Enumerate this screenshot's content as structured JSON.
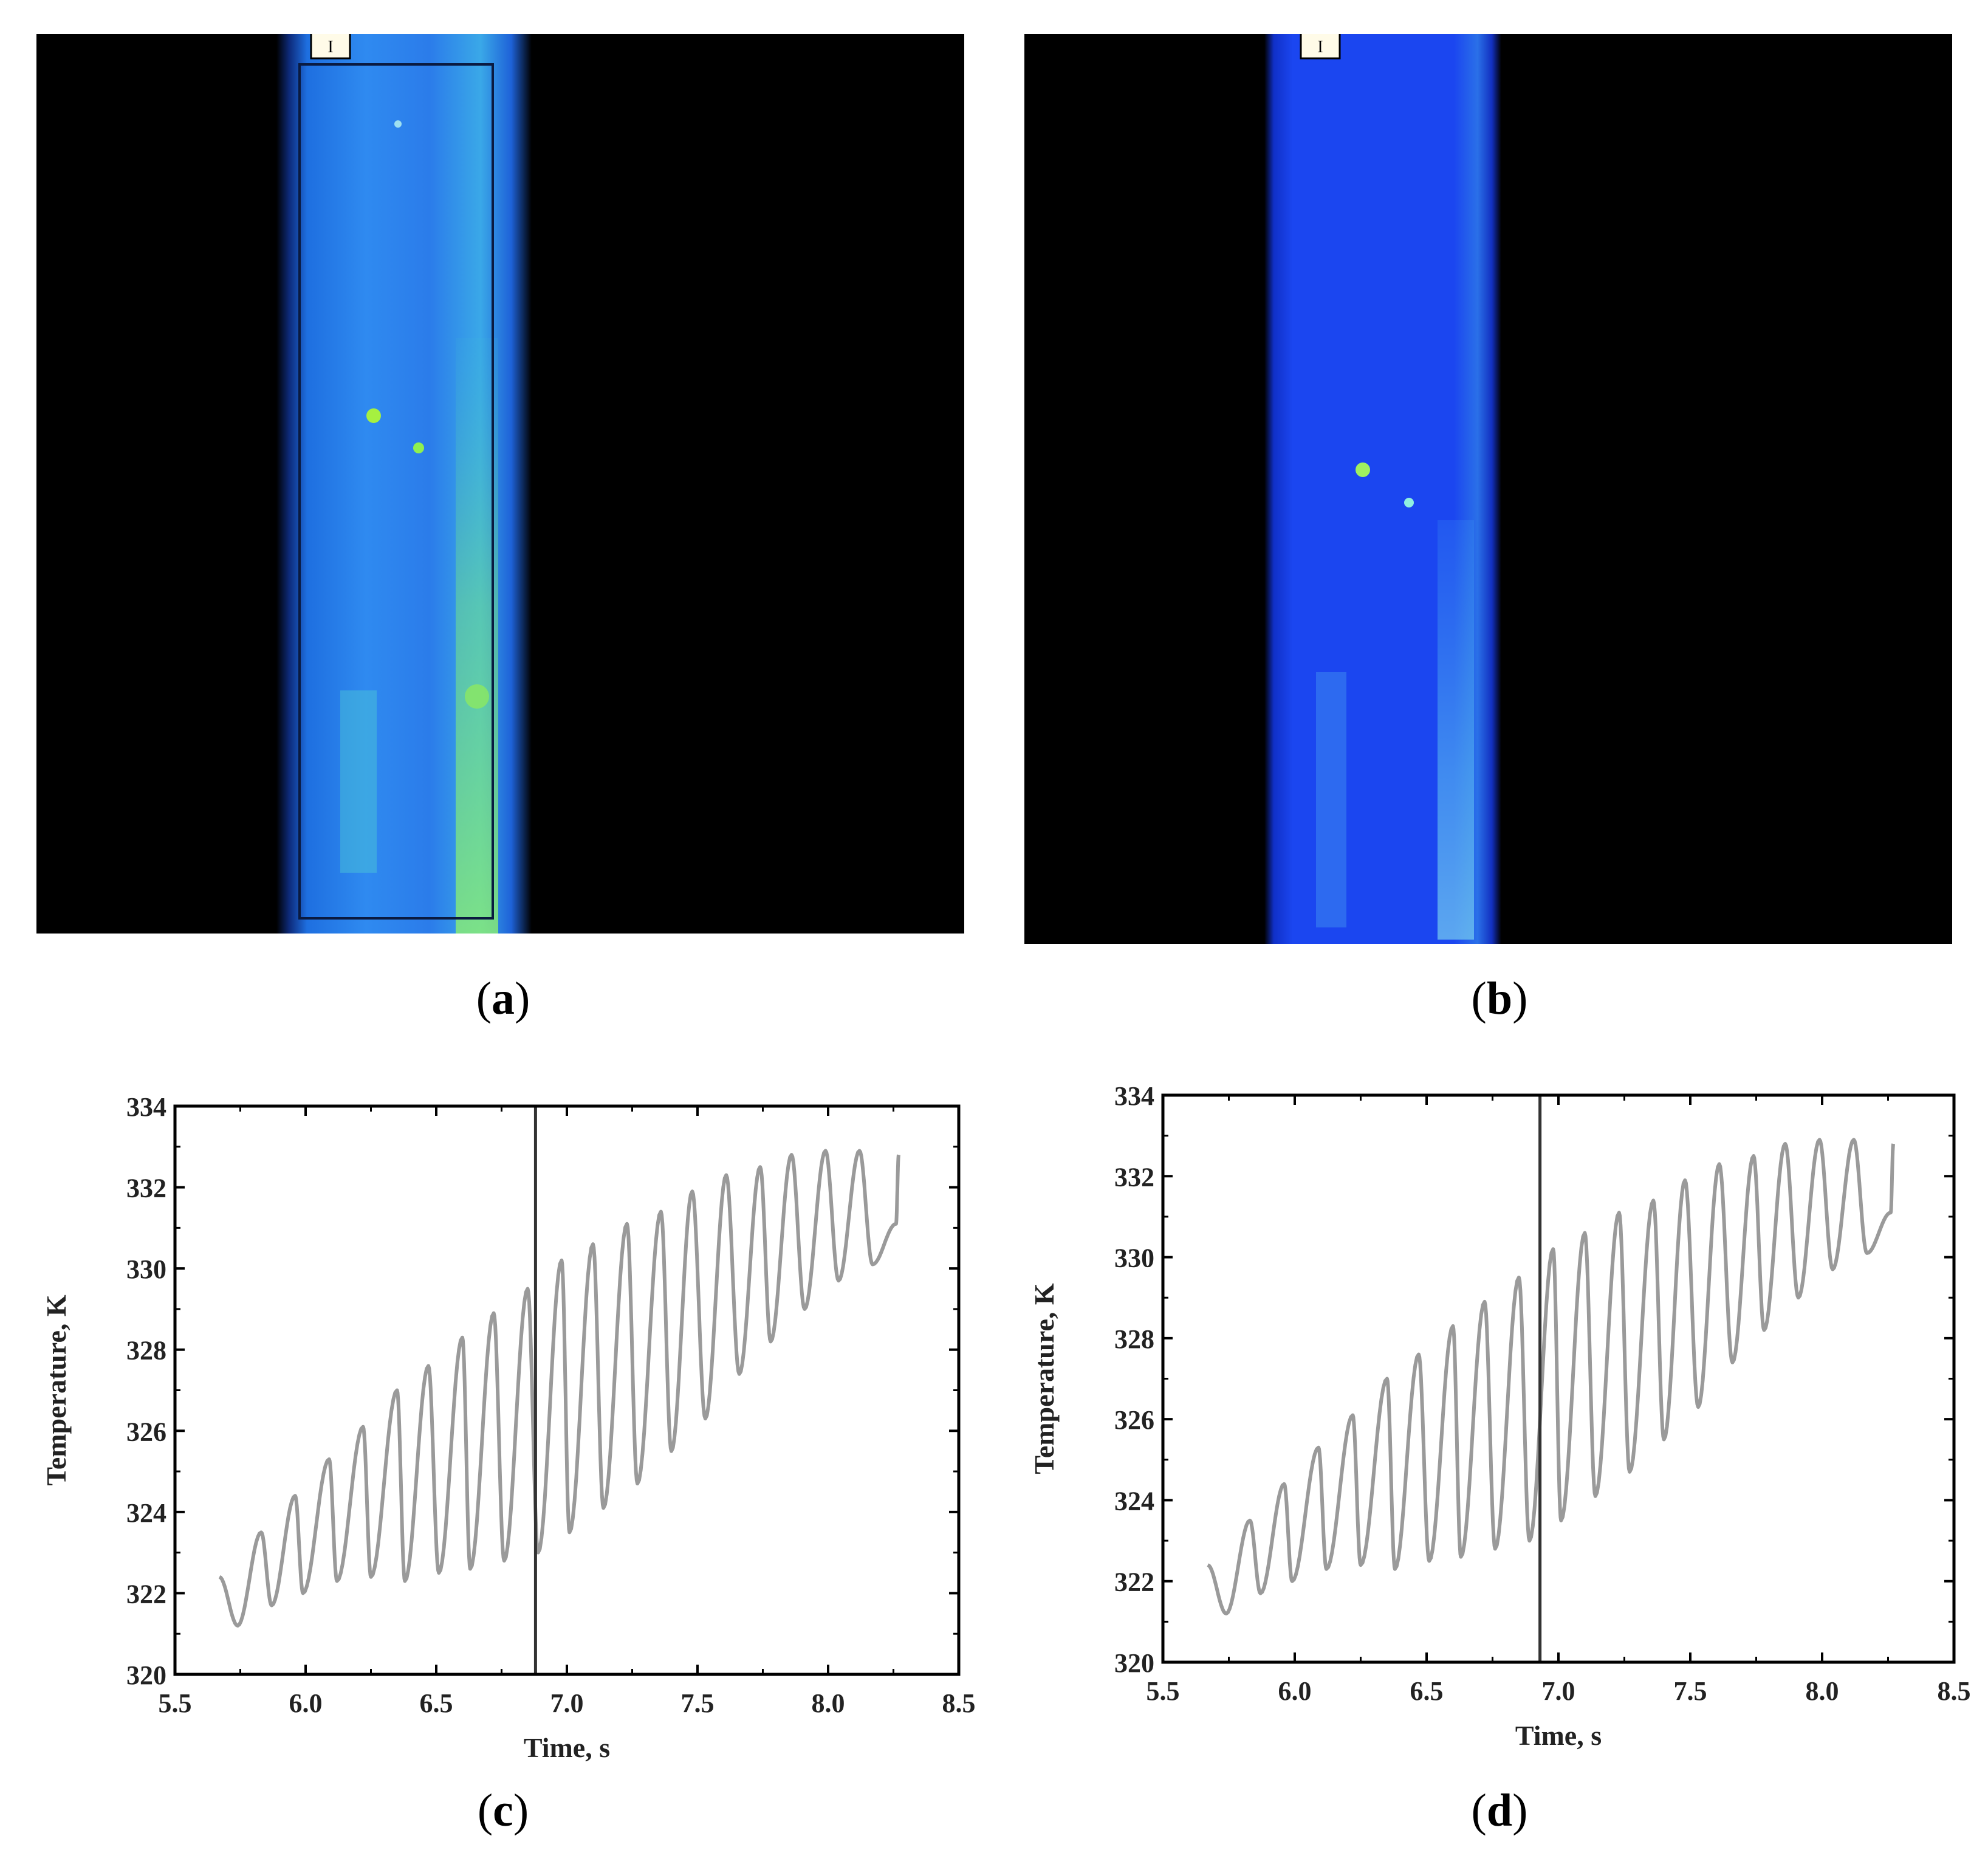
{
  "figure": {
    "panels": [
      {
        "id": "a",
        "caption_open": "(",
        "caption_letter": "a",
        "caption_close": ")"
      },
      {
        "id": "b",
        "caption_open": "(",
        "caption_letter": "b",
        "caption_close": ")"
      },
      {
        "id": "c",
        "caption_open": "(",
        "caption_letter": "c",
        "caption_close": ")"
      },
      {
        "id": "d",
        "caption_open": "(",
        "caption_letter": "d",
        "caption_close": ")"
      }
    ],
    "thermal_marker_label": "I",
    "colors": {
      "background": "#000000",
      "strip_blue_a": "#1c62e6",
      "strip_blue_b": "#1a46f5",
      "hotspot_green": "#8cf03c",
      "curve_gray": "#9a9a9a",
      "cursor_line": "#333333"
    }
  },
  "chart_data": [
    {
      "type": "line",
      "panel": "c",
      "xlabel": "Time, s",
      "ylabel": "Temperature, K",
      "xlim": [
        5.5,
        8.5
      ],
      "ylim": [
        320,
        334
      ],
      "xticks": [
        "5.5",
        "6.0",
        "6.5",
        "7.0",
        "7.5",
        "8.0",
        "8.5"
      ],
      "yticks": [
        "320",
        "322",
        "324",
        "326",
        "328",
        "330",
        "332",
        "334"
      ],
      "vertical_marker_x": 6.88,
      "series": [
        {
          "oscillation_period_s": 0.126,
          "x_start": 5.67,
          "x_end": 8.28,
          "peaks": [
            [
              5.83,
              323.5
            ],
            [
              5.96,
              324.4
            ],
            [
              6.09,
              325.3
            ],
            [
              6.22,
              326.1
            ],
            [
              6.35,
              327.0
            ],
            [
              6.47,
              327.6
            ],
            [
              6.6,
              328.3
            ],
            [
              6.72,
              328.9
            ],
            [
              6.85,
              329.5
            ],
            [
              6.98,
              330.2
            ],
            [
              7.1,
              330.6
            ],
            [
              7.23,
              331.1
            ],
            [
              7.36,
              331.4
            ],
            [
              7.48,
              331.9
            ],
            [
              7.61,
              332.3
            ],
            [
              7.74,
              332.5
            ],
            [
              7.86,
              332.8
            ],
            [
              7.99,
              332.9
            ],
            [
              8.12,
              332.9
            ],
            [
              8.27,
              332.8
            ]
          ],
          "troughs": [
            [
              5.74,
              321.2
            ],
            [
              5.87,
              321.7
            ],
            [
              5.99,
              322.0
            ],
            [
              6.12,
              322.3
            ],
            [
              6.25,
              322.4
            ],
            [
              6.38,
              322.3
            ],
            [
              6.51,
              322.5
            ],
            [
              6.63,
              322.6
            ],
            [
              6.76,
              322.8
            ],
            [
              6.89,
              323.0
            ],
            [
              7.01,
              323.5
            ],
            [
              7.14,
              324.1
            ],
            [
              7.27,
              324.7
            ],
            [
              7.4,
              325.5
            ],
            [
              7.53,
              326.3
            ],
            [
              7.66,
              327.4
            ],
            [
              7.78,
              328.2
            ],
            [
              7.91,
              329.0
            ],
            [
              8.04,
              329.7
            ],
            [
              8.17,
              330.1
            ],
            [
              8.26,
              331.1
            ]
          ]
        }
      ]
    },
    {
      "type": "line",
      "panel": "d",
      "xlabel": "Time, s",
      "ylabel": "Temperature, K",
      "xlim": [
        5.5,
        8.5
      ],
      "ylim": [
        320,
        334
      ],
      "xticks": [
        "5.5",
        "6.0",
        "6.5",
        "7.0",
        "7.5",
        "8.0",
        "8.5"
      ],
      "yticks": [
        "320",
        "322",
        "324",
        "326",
        "328",
        "330",
        "332",
        "334"
      ],
      "vertical_marker_x": 6.93,
      "series": [
        {
          "oscillation_period_s": 0.126,
          "x_start": 5.67,
          "x_end": 8.28,
          "peaks": [
            [
              5.83,
              323.5
            ],
            [
              5.96,
              324.4
            ],
            [
              6.09,
              325.3
            ],
            [
              6.22,
              326.1
            ],
            [
              6.35,
              327.0
            ],
            [
              6.47,
              327.6
            ],
            [
              6.6,
              328.3
            ],
            [
              6.72,
              328.9
            ],
            [
              6.85,
              329.5
            ],
            [
              6.98,
              330.2
            ],
            [
              7.1,
              330.6
            ],
            [
              7.23,
              331.1
            ],
            [
              7.36,
              331.4
            ],
            [
              7.48,
              331.9
            ],
            [
              7.61,
              332.3
            ],
            [
              7.74,
              332.5
            ],
            [
              7.86,
              332.8
            ],
            [
              7.99,
              332.9
            ],
            [
              8.12,
              332.9
            ],
            [
              8.27,
              332.8
            ]
          ],
          "troughs": [
            [
              5.74,
              321.2
            ],
            [
              5.87,
              321.7
            ],
            [
              5.99,
              322.0
            ],
            [
              6.12,
              322.3
            ],
            [
              6.25,
              322.4
            ],
            [
              6.38,
              322.3
            ],
            [
              6.51,
              322.5
            ],
            [
              6.63,
              322.6
            ],
            [
              6.76,
              322.8
            ],
            [
              6.89,
              323.0
            ],
            [
              7.01,
              323.5
            ],
            [
              7.14,
              324.1
            ],
            [
              7.27,
              324.7
            ],
            [
              7.4,
              325.5
            ],
            [
              7.53,
              326.3
            ],
            [
              7.66,
              327.4
            ],
            [
              7.78,
              328.2
            ],
            [
              7.91,
              329.0
            ],
            [
              8.04,
              329.7
            ],
            [
              8.17,
              330.1
            ],
            [
              8.26,
              331.1
            ]
          ]
        }
      ]
    }
  ]
}
